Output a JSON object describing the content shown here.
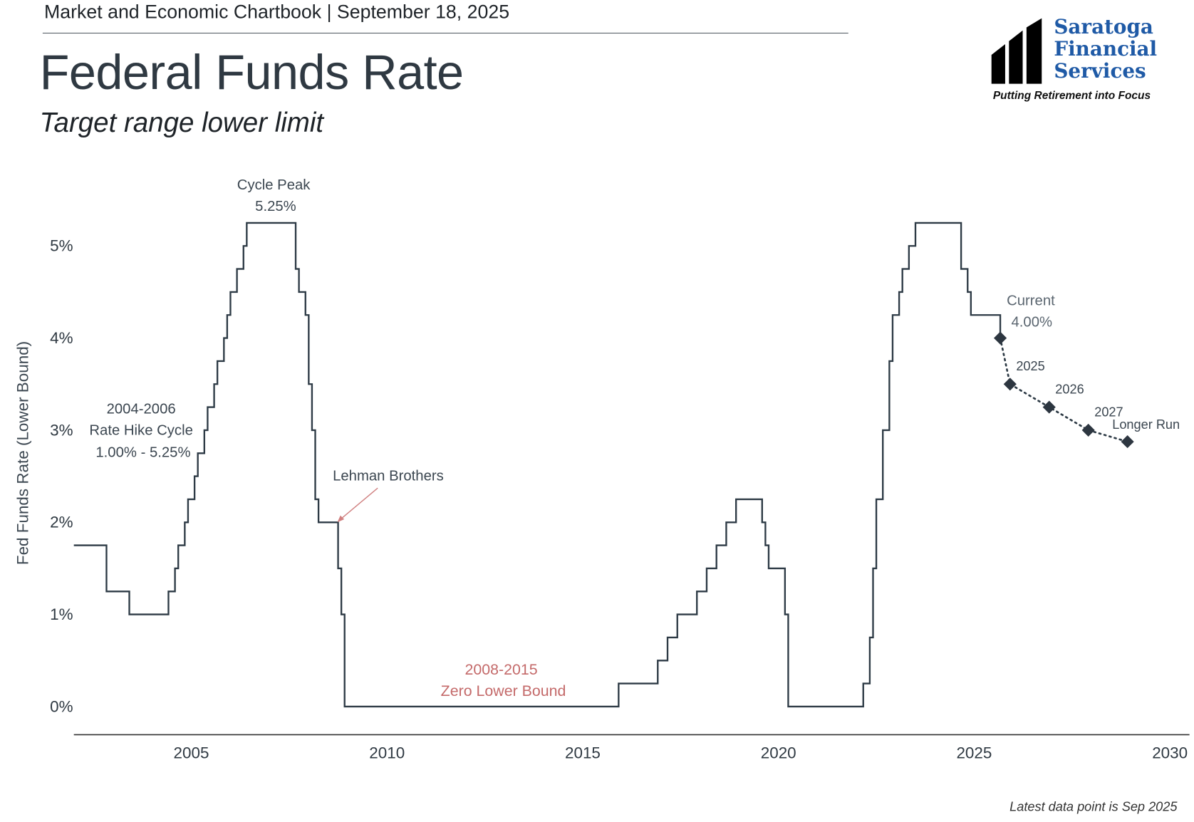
{
  "header": {
    "text": "Market and Economic Chartbook | September 18, 2025"
  },
  "title": "Federal Funds Rate",
  "subtitle": "Target range lower limit",
  "logo": {
    "name_lines": [
      "Saratoga",
      "Financial",
      "Services"
    ],
    "tagline": "Putting Retirement into Focus",
    "brand_color": "#1f5aa6"
  },
  "footnote": "Latest data point is Sep 2025",
  "chart_data": {
    "type": "line",
    "ylabel": "Fed Funds Rate (Lower Bound)",
    "xlabel": "",
    "xlim": [
      2002,
      2030.5
    ],
    "ylim": [
      -0.3,
      5.6
    ],
    "x_ticks": [
      "2005",
      "2010",
      "2015",
      "2020",
      "2025",
      "2030"
    ],
    "y_ticks": [
      "0%",
      "1%",
      "2%",
      "3%",
      "4%",
      "5%"
    ],
    "grid": false,
    "colors": {
      "line": "#2d3a45",
      "annotation_red": "#c46a6a"
    },
    "series": [
      {
        "style": "step",
        "points": [
          [
            "2002-01",
            1.75
          ],
          [
            "2002-11",
            1.25
          ],
          [
            "2003-06",
            1.0
          ],
          [
            "2004-06",
            1.25
          ],
          [
            "2004-08",
            1.5
          ],
          [
            "2004-09",
            1.75
          ],
          [
            "2004-11",
            2.0
          ],
          [
            "2004-12",
            2.25
          ],
          [
            "2005-02",
            2.5
          ],
          [
            "2005-03",
            2.75
          ],
          [
            "2005-05",
            3.0
          ],
          [
            "2005-06",
            3.25
          ],
          [
            "2005-08",
            3.5
          ],
          [
            "2005-09",
            3.75
          ],
          [
            "2005-11",
            4.0
          ],
          [
            "2005-12",
            4.25
          ],
          [
            "2006-01",
            4.5
          ],
          [
            "2006-03",
            4.75
          ],
          [
            "2006-05",
            5.0
          ],
          [
            "2006-06",
            5.25
          ],
          [
            "2007-09",
            4.75
          ],
          [
            "2007-10",
            4.5
          ],
          [
            "2007-12",
            4.25
          ],
          [
            "2008-01",
            3.5
          ],
          [
            "2008-02",
            3.0
          ],
          [
            "2008-03",
            2.25
          ],
          [
            "2008-04",
            2.0
          ],
          [
            "2008-10",
            1.5
          ],
          [
            "2008-11",
            1.0
          ],
          [
            "2008-12",
            0.0
          ],
          [
            "2015-12",
            0.25
          ],
          [
            "2016-12",
            0.5
          ],
          [
            "2017-03",
            0.75
          ],
          [
            "2017-06",
            1.0
          ],
          [
            "2017-12",
            1.25
          ],
          [
            "2018-03",
            1.5
          ],
          [
            "2018-06",
            1.75
          ],
          [
            "2018-09",
            2.0
          ],
          [
            "2018-12",
            2.25
          ],
          [
            "2019-08",
            2.0
          ],
          [
            "2019-09",
            1.75
          ],
          [
            "2019-10",
            1.5
          ],
          [
            "2020-03",
            1.0
          ],
          [
            "2020-04",
            0.0
          ],
          [
            "2022-03",
            0.25
          ],
          [
            "2022-05",
            0.75
          ],
          [
            "2022-06",
            1.5
          ],
          [
            "2022-07",
            2.25
          ],
          [
            "2022-09",
            3.0
          ],
          [
            "2022-11",
            3.75
          ],
          [
            "2022-12",
            4.25
          ],
          [
            "2023-02",
            4.5
          ],
          [
            "2023-03",
            4.75
          ],
          [
            "2023-05",
            5.0
          ],
          [
            "2023-07",
            5.25
          ],
          [
            "2024-09",
            4.75
          ],
          [
            "2024-11",
            4.5
          ],
          [
            "2024-12",
            4.25
          ],
          [
            "2025-09",
            4.0
          ]
        ]
      },
      {
        "style": "dotted-with-diamonds",
        "points": [
          [
            "2025-09",
            4.0,
            "Current\n4.00%"
          ],
          [
            "2025-12",
            3.5,
            "2025"
          ],
          [
            "2026-12",
            3.25,
            "2026"
          ],
          [
            "2027-12",
            3.0,
            "2027"
          ],
          [
            "2028-12",
            2.875,
            "Longer Run"
          ]
        ]
      }
    ],
    "annotations": {
      "cycle_peak": [
        "Cycle Peak",
        "5.25%"
      ],
      "hike_cycle": [
        "2004-2006",
        "Rate Hike Cycle",
        "1.00% - 5.25%"
      ],
      "lehman": "Lehman Brothers",
      "zlb": [
        "2008-2015",
        "Zero Lower Bound"
      ],
      "current": [
        "Current",
        "4.00%"
      ]
    }
  }
}
